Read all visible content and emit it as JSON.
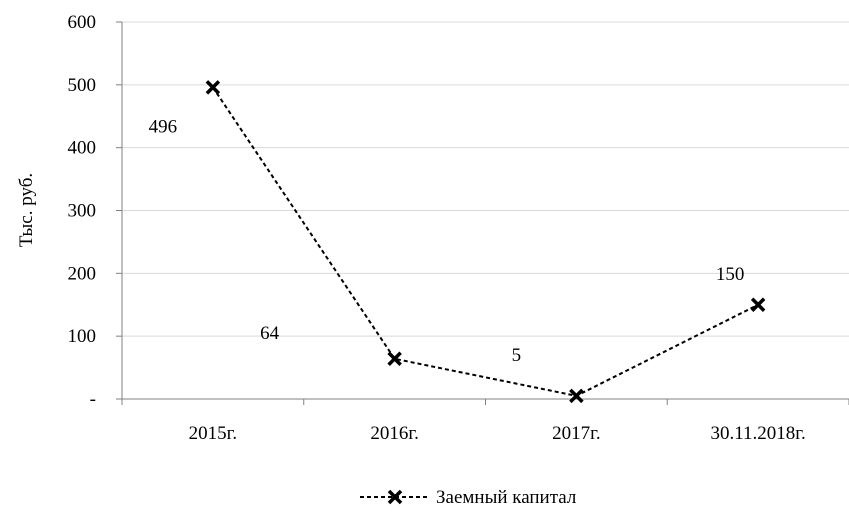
{
  "chart_data": {
    "type": "line",
    "ylabel": "Тыс. руб.",
    "ylim": [
      0,
      600
    ],
    "y_ticks": [
      "-",
      "100",
      "200",
      "300",
      "400",
      "500",
      "600"
    ],
    "y_tick_values": [
      0,
      100,
      200,
      300,
      400,
      500,
      600
    ],
    "categories": [
      "2015г.",
      "2016г.",
      "2017г.",
      "30.11.2018г."
    ],
    "grid": true,
    "legend_position": "bottom",
    "series": [
      {
        "name": "Заемный капитал",
        "values": [
          496,
          64,
          5,
          150
        ],
        "data_labels": [
          "496",
          "64",
          "5",
          "150"
        ],
        "color": "#000000",
        "line_style": "dashed",
        "marker": "x"
      }
    ]
  }
}
